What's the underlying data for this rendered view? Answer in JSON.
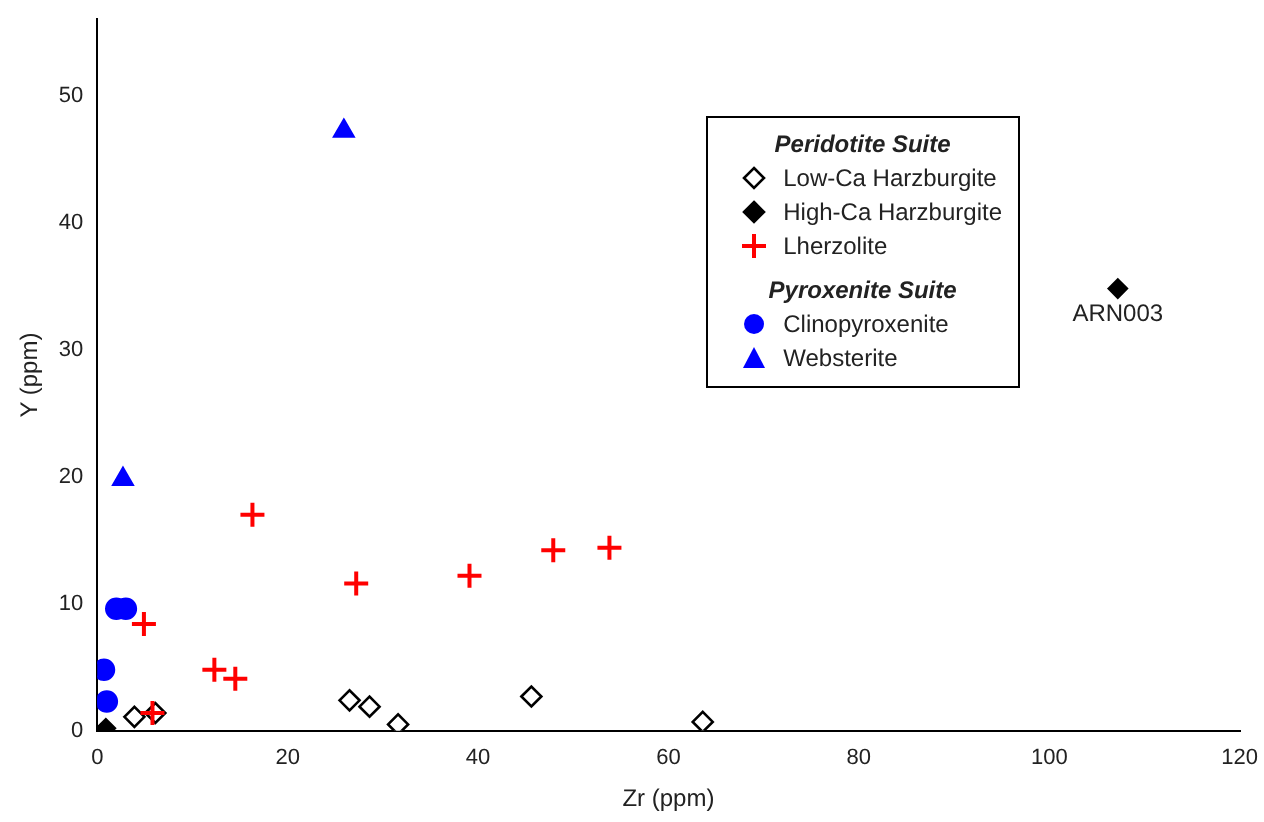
{
  "chart_data": {
    "type": "scatter",
    "xlabel": "Zr (ppm)",
    "ylabel": "Y (ppm)",
    "xlim": [
      0,
      120
    ],
    "xticks": [
      0,
      20,
      40,
      60,
      80,
      100,
      120
    ],
    "ylim": [
      0,
      56
    ],
    "yticks": [
      0,
      10,
      20,
      30,
      40,
      50
    ],
    "grid": false,
    "legend": "top right",
    "annotations": [
      "Peridotite Suite",
      "Pyroxenite Suite",
      {
        "text": "ARN003",
        "x": 107.2,
        "y": 34.8
      }
    ],
    "series": [
      {
        "name": "Low-Ca Harzburgite",
        "color": "#000000",
        "marker": "diamond-open",
        "x": [
          3.9,
          6.1,
          26.5,
          28.6,
          31.6,
          45.6,
          63.6
        ],
        "values": [
          1.1,
          1.4,
          2.4,
          1.9,
          0.5,
          2.7,
          0.7
        ]
      },
      {
        "name": "High-Ca Harzburgite",
        "color": "#000000",
        "marker": "diamond",
        "x": [
          0.9,
          107.2
        ],
        "values": [
          0.2,
          34.8
        ]
      },
      {
        "name": "Lherzolite",
        "color": "#ff0000",
        "marker": "cross",
        "x": [
          4.9,
          5.8,
          12.3,
          14.5,
          16.3,
          27.2,
          39.1,
          47.9,
          53.8
        ],
        "values": [
          8.4,
          1.4,
          4.8,
          4.1,
          17.0,
          11.6,
          12.2,
          14.2,
          14.4
        ]
      },
      {
        "name": "Clinopyroxenite",
        "color": "#0000ff",
        "marker": "circle",
        "x": [
          0.7,
          1.0,
          2.0,
          3.0
        ],
        "values": [
          4.8,
          2.3,
          9.6,
          9.6
        ]
      },
      {
        "name": "Websterite",
        "color": "#0000ff",
        "marker": "triangle",
        "x": [
          25.9,
          2.7
        ],
        "values": [
          47.2,
          19.8
        ]
      }
    ]
  }
}
